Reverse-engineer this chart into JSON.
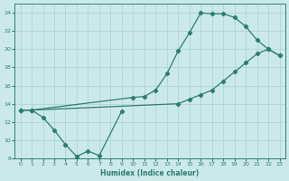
{
  "xlabel": "Humidex (Indice chaleur)",
  "xlim": [
    -0.5,
    23.5
  ],
  "ylim": [
    8,
    25
  ],
  "yticks": [
    8,
    10,
    12,
    14,
    16,
    18,
    20,
    22,
    24
  ],
  "xticks": [
    0,
    1,
    2,
    3,
    4,
    5,
    6,
    7,
    8,
    9,
    10,
    11,
    12,
    13,
    14,
    15,
    16,
    17,
    18,
    19,
    20,
    21,
    22,
    23
  ],
  "bg_color": "#cce9e9",
  "line_color": "#2d7d72",
  "grid_color": "#b0d4d4",
  "curve1_x": [
    0,
    1,
    2,
    3,
    4,
    5,
    6,
    7,
    9
  ],
  "curve1_y": [
    13.3,
    13.3,
    12.5,
    11.1,
    9.5,
    8.2,
    8.8,
    8.3,
    13.2
  ],
  "curve2_x": [
    0,
    1,
    10,
    11,
    12,
    13,
    14,
    15,
    16,
    17,
    18,
    19,
    20,
    21,
    22,
    23
  ],
  "curve2_y": [
    13.3,
    13.3,
    14.7,
    14.8,
    15.5,
    17.3,
    19.8,
    21.8,
    24.0,
    23.9,
    23.9,
    23.5,
    22.5,
    21.0,
    20.0,
    19.3
  ],
  "curve3_x": [
    0,
    1,
    14,
    15,
    16,
    17,
    18,
    19,
    20,
    21,
    22,
    23
  ],
  "curve3_y": [
    13.3,
    13.3,
    14.0,
    14.5,
    15.0,
    15.5,
    16.5,
    17.5,
    18.5,
    19.5,
    20.0,
    19.3
  ]
}
